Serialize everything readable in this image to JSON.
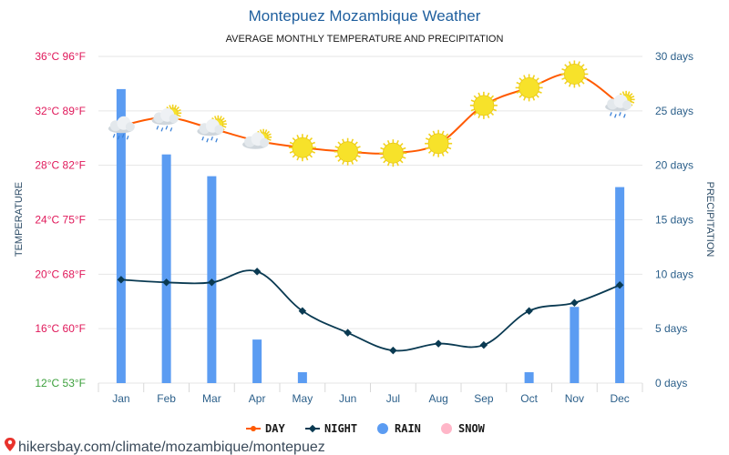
{
  "chart_data": {
    "type": "line",
    "title": "Montepuez Mozambique Weather",
    "subtitle": "AVERAGE MONTHLY TEMPERATURE AND PRECIPITATION",
    "ylabel": "TEMPERATURE",
    "y2label": "PRECIPITATION",
    "categories": [
      "Jan",
      "Feb",
      "Mar",
      "Apr",
      "May",
      "Jun",
      "Jul",
      "Aug",
      "Sep",
      "Oct",
      "Nov",
      "Dec"
    ],
    "ylim": [
      12,
      36
    ],
    "y2lim": [
      0,
      30
    ],
    "left_ticks": [
      "12°C 53°F",
      "16°C 60°F",
      "20°C 68°F",
      "24°C 75°F",
      "28°C 82°F",
      "32°C 89°F",
      "36°C 96°F"
    ],
    "right_ticks": [
      "0 days",
      "5 days",
      "10 days",
      "15 days",
      "20 days",
      "25 days",
      "30 days"
    ],
    "grid": true,
    "legend_position": "bottom",
    "series": [
      {
        "name": "DAY",
        "axis": "left",
        "color": "#ff5a00",
        "values": [
          30.9,
          31.5,
          30.7,
          29.8,
          29.3,
          29.0,
          28.9,
          29.6,
          32.4,
          33.7,
          34.7,
          32.5
        ]
      },
      {
        "name": "NIGHT",
        "axis": "left",
        "color": "#0a3a52",
        "values": [
          19.6,
          19.4,
          19.4,
          20.2,
          17.3,
          15.7,
          14.4,
          14.9,
          14.8,
          17.3,
          17.9,
          19.2
        ]
      },
      {
        "name": "RAIN",
        "axis": "right",
        "color": "#5b9cf2",
        "values": [
          27,
          21,
          19,
          4,
          1,
          0,
          0,
          0,
          0,
          1,
          7,
          18
        ]
      },
      {
        "name": "SNOW",
        "axis": "right",
        "color": "#ffb6c8",
        "values": [
          0,
          0,
          0,
          0,
          0,
          0,
          0,
          0,
          0,
          0,
          0,
          0
        ]
      }
    ],
    "weather_icons": [
      "rain-cloud-icon",
      "cloud-sun-rain-icon",
      "cloud-sun-rain-icon",
      "cloud-sun-icon",
      "sun-icon",
      "sun-icon",
      "sun-icon",
      "sun-icon",
      "sun-icon",
      "sun-icon",
      "sun-icon",
      "cloud-sun-rain-icon"
    ],
    "left_tick_colors": [
      "#3ca03c",
      "#e0185a",
      "#e0185a",
      "#e0185a",
      "#e0185a",
      "#e0185a",
      "#e0185a"
    ]
  },
  "legend": [
    {
      "label": "DAY",
      "color": "#ff5a00",
      "marker": "line-dot"
    },
    {
      "label": "NIGHT",
      "color": "#0a3a52",
      "marker": "line-diamond"
    },
    {
      "label": "RAIN",
      "color": "#5b9cf2",
      "marker": "dot"
    },
    {
      "label": "SNOW",
      "color": "#ffb6c8",
      "marker": "dot"
    }
  ],
  "source": {
    "text": "hikersbay.com/climate/mozambique/montepuez",
    "icon": "location-pin-icon",
    "icon_color": "#e8322c"
  }
}
